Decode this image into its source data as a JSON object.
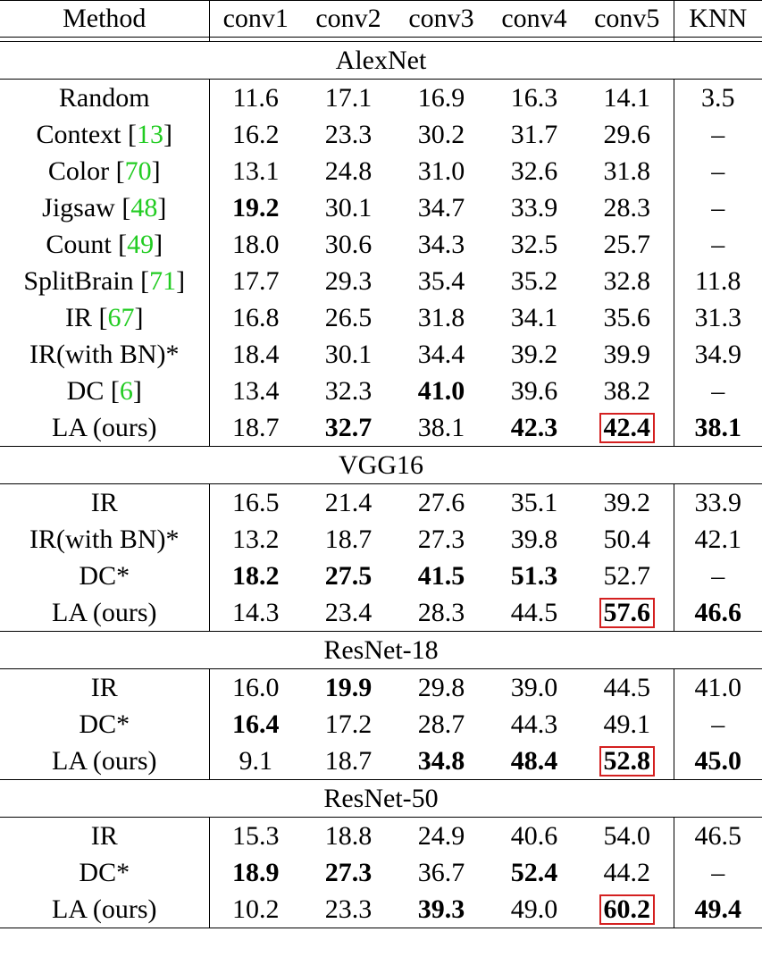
{
  "columns": [
    "Method",
    "conv1",
    "conv2",
    "conv3",
    "conv4",
    "conv5",
    "KNN"
  ],
  "sections": [
    {
      "name": "AlexNet",
      "rows": [
        {
          "method": "Random",
          "cite": "",
          "values": [
            "11.6",
            "17.1",
            "16.9",
            "16.3",
            "14.1",
            "3.5"
          ],
          "bold": [],
          "boxed": []
        },
        {
          "method": "Context [",
          "cite": "13",
          "values": [
            "16.2",
            "23.3",
            "30.2",
            "31.7",
            "29.6",
            "–"
          ],
          "bold": [],
          "boxed": []
        },
        {
          "method": "Color [",
          "cite": "70",
          "values": [
            "13.1",
            "24.8",
            "31.0",
            "32.6",
            "31.8",
            "–"
          ],
          "bold": [],
          "boxed": []
        },
        {
          "method": "Jigsaw [",
          "cite": "48",
          "values": [
            "19.2",
            "30.1",
            "34.7",
            "33.9",
            "28.3",
            "–"
          ],
          "bold": [
            0
          ],
          "boxed": []
        },
        {
          "method": "Count [",
          "cite": "49",
          "values": [
            "18.0",
            "30.6",
            "34.3",
            "32.5",
            "25.7",
            "–"
          ],
          "bold": [],
          "boxed": []
        },
        {
          "method": "SplitBrain [",
          "cite": "71",
          "values": [
            "17.7",
            "29.3",
            "35.4",
            "35.2",
            "32.8",
            "11.8"
          ],
          "bold": [],
          "boxed": []
        },
        {
          "method": "IR [",
          "cite": "67",
          "values": [
            "16.8",
            "26.5",
            "31.8",
            "34.1",
            "35.6",
            "31.3"
          ],
          "bold": [],
          "boxed": []
        },
        {
          "method": "IR(with BN)*",
          "cite": "",
          "values": [
            "18.4",
            "30.1",
            "34.4",
            "39.2",
            "39.9",
            "34.9"
          ],
          "bold": [],
          "boxed": []
        },
        {
          "method": "DC [",
          "cite": "6",
          "values": [
            "13.4",
            "32.3",
            "41.0",
            "39.6",
            "38.2",
            "–"
          ],
          "bold": [
            2
          ],
          "boxed": []
        },
        {
          "method": "LA (ours)",
          "cite": "",
          "values": [
            "18.7",
            "32.7",
            "38.1",
            "42.3",
            "42.4",
            "38.1"
          ],
          "bold": [
            1,
            3,
            4,
            5
          ],
          "boxed": [
            4
          ]
        }
      ]
    },
    {
      "name": "VGG16",
      "rows": [
        {
          "method": "IR",
          "cite": "",
          "values": [
            "16.5",
            "21.4",
            "27.6",
            "35.1",
            "39.2",
            "33.9"
          ],
          "bold": [],
          "boxed": []
        },
        {
          "method": "IR(with BN)*",
          "cite": "",
          "values": [
            "13.2",
            "18.7",
            "27.3",
            "39.8",
            "50.4",
            "42.1"
          ],
          "bold": [],
          "boxed": []
        },
        {
          "method": "DC*",
          "cite": "",
          "values": [
            "18.2",
            "27.5",
            "41.5",
            "51.3",
            "52.7",
            "–"
          ],
          "bold": [
            0,
            1,
            2,
            3
          ],
          "boxed": []
        },
        {
          "method": "LA (ours)",
          "cite": "",
          "values": [
            "14.3",
            "23.4",
            "28.3",
            "44.5",
            "57.6",
            "46.6"
          ],
          "bold": [
            4,
            5
          ],
          "boxed": [
            4
          ]
        }
      ]
    },
    {
      "name": "ResNet-18",
      "rows": [
        {
          "method": "IR",
          "cite": "",
          "values": [
            "16.0",
            "19.9",
            "29.8",
            "39.0",
            "44.5",
            "41.0"
          ],
          "bold": [
            1
          ],
          "boxed": []
        },
        {
          "method": "DC*",
          "cite": "",
          "values": [
            "16.4",
            "17.2",
            "28.7",
            "44.3",
            "49.1",
            "–"
          ],
          "bold": [
            0
          ],
          "boxed": []
        },
        {
          "method": "LA (ours)",
          "cite": "",
          "values": [
            "9.1",
            "18.7",
            "34.8",
            "48.4",
            "52.8",
            "45.0"
          ],
          "bold": [
            2,
            3,
            4,
            5
          ],
          "boxed": [
            4
          ]
        }
      ]
    },
    {
      "name": "ResNet-50",
      "rows": [
        {
          "method": "IR",
          "cite": "",
          "values": [
            "15.3",
            "18.8",
            "24.9",
            "40.6",
            "54.0",
            "46.5"
          ],
          "bold": [],
          "boxed": []
        },
        {
          "method": "DC*",
          "cite": "",
          "values": [
            "18.9",
            "27.3",
            "36.7",
            "52.4",
            "44.2",
            "–"
          ],
          "bold": [
            0,
            1,
            3
          ],
          "boxed": []
        },
        {
          "method": "LA (ours)",
          "cite": "",
          "values": [
            "10.2",
            "23.3",
            "39.3",
            "49.0",
            "60.2",
            "49.4"
          ],
          "bold": [
            2,
            4,
            5
          ],
          "boxed": [
            4
          ]
        }
      ]
    }
  ],
  "colors": {
    "citation": "#22cc22",
    "highlight_box": "#d42020"
  }
}
